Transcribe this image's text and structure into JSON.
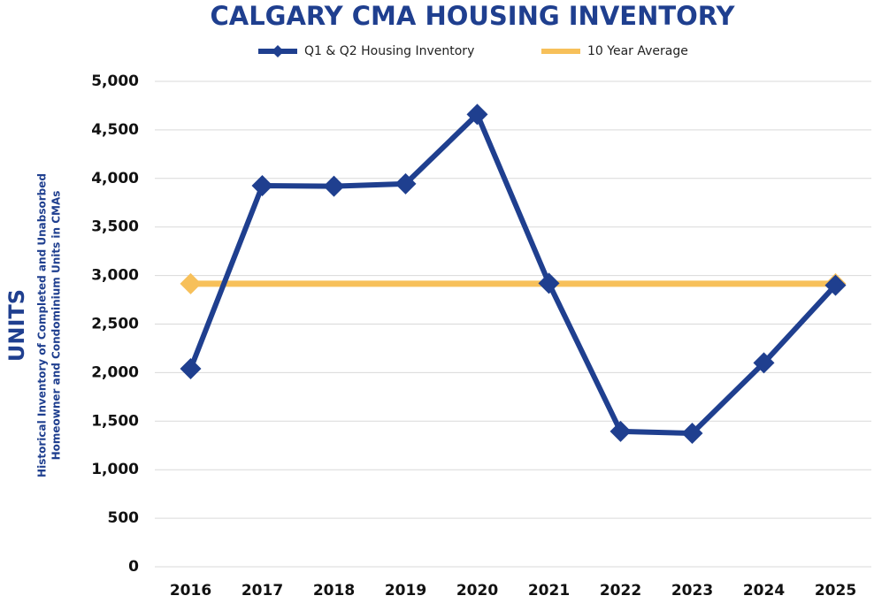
{
  "chart_data": {
    "type": "line",
    "title": "CALGARY CMA HOUSING INVENTORY",
    "y_label": "UNITS",
    "y_sublabel": [
      "Historical Inventory of Completed and Unabsorbed",
      "Homeowner and Condominium Units in CMAs"
    ],
    "categories": [
      "2016",
      "2017",
      "2018",
      "2019",
      "2020",
      "2021",
      "2022",
      "2023",
      "2024",
      "2025"
    ],
    "series": [
      {
        "name": "Q1 & Q2 Housing Inventory",
        "color": "#1f3f8f",
        "values": [
          2040,
          3925,
          3920,
          3945,
          4660,
          2920,
          1395,
          1375,
          2100,
          2900
        ]
      },
      {
        "name": "10 Year Average",
        "color": "#f7c05a",
        "values": [
          2915,
          2915,
          2915,
          2915,
          2915,
          2915,
          2915,
          2915,
          2915,
          2915
        ]
      }
    ],
    "ylim": [
      0,
      5000
    ],
    "yticks": [
      0,
      500,
      {
        "value": 1000,
        "label": "1,000"
      },
      {
        "value": 1500,
        "label": "1,500"
      },
      {
        "value": 2000,
        "label": "2,000"
      },
      {
        "value": 2500,
        "label": "2,500"
      },
      {
        "value": 3000,
        "label": "3,000"
      },
      {
        "value": 3500,
        "label": "3,500"
      },
      {
        "value": 4000,
        "label": "4,000"
      },
      {
        "value": 4500,
        "label": "4,500"
      },
      {
        "value": 5000,
        "label": "5,000"
      }
    ],
    "grid": true
  }
}
